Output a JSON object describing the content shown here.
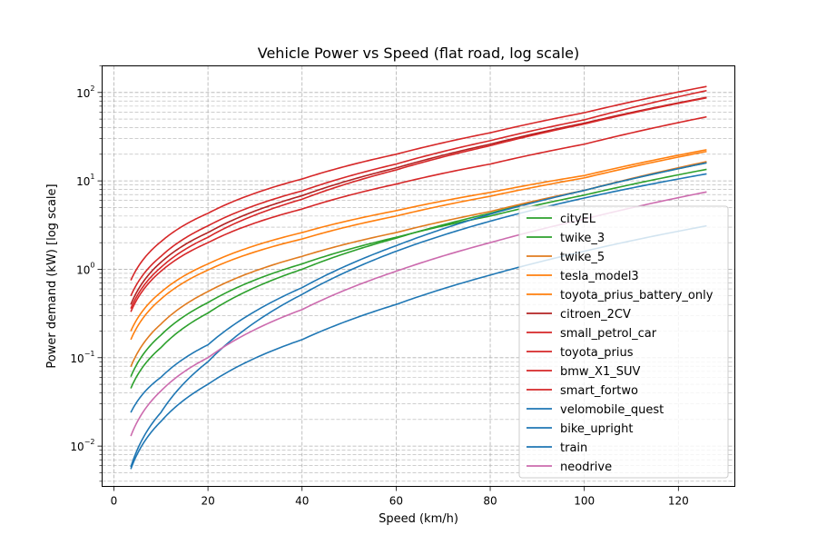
{
  "chart_data": {
    "type": "line",
    "title": "Vehicle Power vs Speed (flat road, log scale)",
    "xlabel": "Speed (km/h)",
    "ylabel": "Power demand (kW) [log scale]",
    "xlim": [
      -2.5,
      132
    ],
    "ylim": [
      0.0035,
      200
    ],
    "yscale": "log",
    "grid": true,
    "grid_minor": true,
    "legend_position": "lower right",
    "xticks": [
      0,
      20,
      40,
      60,
      80,
      100,
      120
    ],
    "xtick_labels": [
      "0",
      "20",
      "40",
      "60",
      "80",
      "100",
      "120"
    ],
    "yticks": [
      0.01,
      0.1,
      1,
      10,
      100
    ],
    "ytick_labels": [
      "10^-2",
      "10^-1",
      "10^0",
      "10^1",
      "10^2"
    ],
    "ytick_label_parts": [
      {
        "base": "10",
        "exp": "−2"
      },
      {
        "base": "10",
        "exp": "−1"
      },
      {
        "base": "10",
        "exp": "0"
      },
      {
        "base": "10",
        "exp": "1"
      },
      {
        "base": "10",
        "exp": "2"
      }
    ],
    "x": [
      3.6,
      10,
      20,
      40,
      60,
      80,
      100,
      126
    ],
    "series": [
      {
        "name": "cityEL",
        "color": "#2ca02c",
        "values": [
          0.061,
          0.18,
          0.42,
          1.15,
          2.3,
          4.0,
          6.9,
          13.5
        ]
      },
      {
        "name": "twike_3",
        "color": "#2ca02c",
        "values": [
          0.045,
          0.13,
          0.32,
          1.0,
          2.25,
          4.3,
          7.8,
          16.0
        ]
      },
      {
        "name": "twike_5",
        "color": "#e07b1f",
        "values": [
          0.079,
          0.24,
          0.56,
          1.4,
          2.6,
          4.5,
          7.8,
          16.5
        ]
      },
      {
        "name": "tesla_model3",
        "color": "#ff7f0e",
        "values": [
          0.16,
          0.46,
          0.98,
          2.2,
          4.0,
          6.7,
          10.8,
          21.5
        ]
      },
      {
        "name": "toyota_prius_battery_only",
        "color": "#ff7f0e",
        "values": [
          0.2,
          0.55,
          1.15,
          2.6,
          4.6,
          7.4,
          11.5,
          22.5
        ]
      },
      {
        "name": "citroen_2CV",
        "color": "#b22222",
        "values": [
          0.4,
          1.2,
          2.6,
          6.8,
          14.0,
          26.0,
          45.0,
          88.0
        ]
      },
      {
        "name": "small_petrol_car",
        "color": "#d62728",
        "values": [
          0.36,
          1.05,
          2.3,
          6.2,
          13.3,
          25.0,
          44.0,
          87.0
        ]
      },
      {
        "name": "toyota_prius",
        "color": "#d62728",
        "values": [
          0.5,
          1.4,
          3.1,
          7.7,
          15.5,
          28.5,
          49.0,
          105.0
        ]
      },
      {
        "name": "bmw_X1_SUV",
        "color": "#d62728",
        "values": [
          0.75,
          2.05,
          4.3,
          10.5,
          20.0,
          35.0,
          59.0,
          117.0
        ]
      },
      {
        "name": "smart_fortwo",
        "color": "#d62728",
        "values": [
          0.33,
          0.95,
          2.0,
          4.8,
          9.2,
          15.5,
          26.0,
          53.0
        ]
      },
      {
        "name": "velomobile_quest",
        "color": "#1f77b4",
        "values": [
          0.0055,
          0.019,
          0.05,
          0.16,
          0.4,
          0.86,
          1.6,
          3.1
        ]
      },
      {
        "name": "bike_upright",
        "color": "#1f77b4",
        "values": [
          0.0058,
          0.024,
          0.09,
          0.52,
          1.6,
          3.5,
          6.4,
          12.0
        ]
      },
      {
        "name": "train",
        "color": "#1f77b4",
        "values": [
          0.024,
          0.06,
          0.14,
          0.62,
          1.85,
          4.2,
          7.8,
          16.0
        ]
      },
      {
        "name": "neodrive",
        "color": "#cc6bae",
        "values": [
          0.013,
          0.042,
          0.1,
          0.35,
          0.95,
          2.0,
          3.7,
          7.5
        ]
      }
    ]
  }
}
